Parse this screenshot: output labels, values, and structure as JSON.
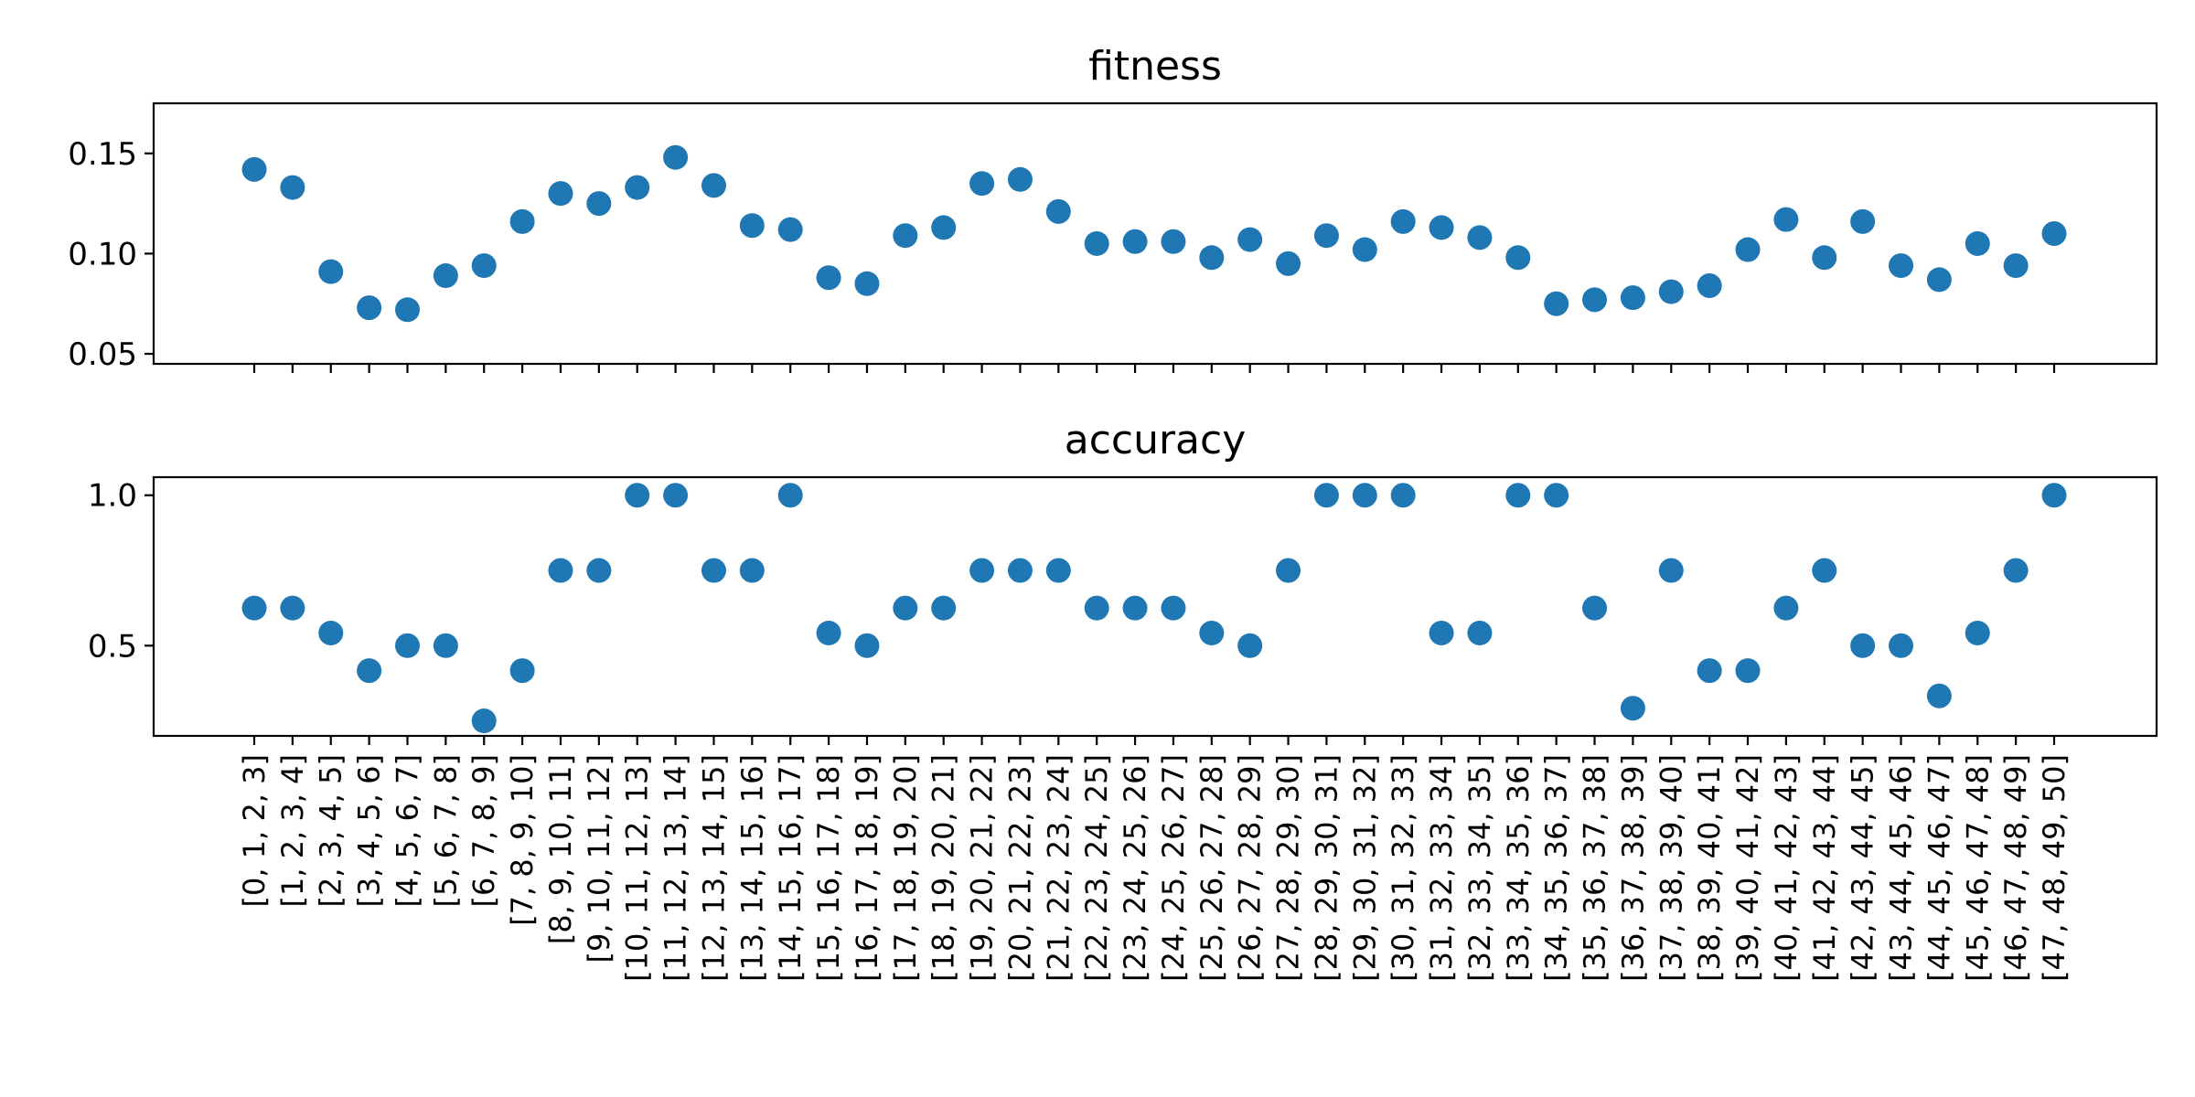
{
  "colors": {
    "marker": "#1f77b4",
    "axes": "#000000",
    "background": "#ffffff"
  },
  "chart_data": [
    {
      "type": "scatter",
      "title": "fitness",
      "xlabel": "",
      "ylabel": "",
      "ylim": [
        0.045,
        0.175
      ],
      "yticks": [
        0.05,
        0.1,
        0.15
      ],
      "ytick_labels": [
        "0.05",
        "0.10",
        "0.15"
      ],
      "grid": false,
      "x_tick_labels_visible": false,
      "values": [
        0.142,
        0.133,
        0.091,
        0.073,
        0.072,
        0.089,
        0.094,
        0.116,
        0.13,
        0.125,
        0.133,
        0.148,
        0.134,
        0.114,
        0.112,
        0.088,
        0.085,
        0.109,
        0.113,
        0.135,
        0.137,
        0.121,
        0.105,
        0.106,
        0.106,
        0.098,
        0.107,
        0.095,
        0.109,
        0.102,
        0.116,
        0.113,
        0.108,
        0.098,
        0.075,
        0.077,
        0.078,
        0.081,
        0.084,
        0.102,
        0.117,
        0.098,
        0.116,
        0.094,
        0.087,
        0.105,
        0.094,
        0.11
      ]
    },
    {
      "type": "scatter",
      "title": "accuracy",
      "xlabel": "",
      "ylabel": "",
      "ylim": [
        0.2,
        1.06
      ],
      "yticks": [
        0.5,
        1.0
      ],
      "ytick_labels": [
        "0.5",
        "1.0"
      ],
      "grid": false,
      "x_tick_labels_visible": true,
      "values": [
        0.625,
        0.625,
        0.542,
        0.417,
        0.5,
        0.5,
        0.25,
        0.417,
        0.75,
        0.75,
        1.0,
        1.0,
        0.75,
        0.75,
        1.0,
        0.542,
        0.5,
        0.625,
        0.625,
        0.75,
        0.75,
        0.75,
        0.625,
        0.625,
        0.625,
        0.542,
        0.5,
        0.75,
        1.0,
        1.0,
        1.0,
        0.542,
        0.542,
        1.0,
        1.0,
        0.625,
        0.292,
        0.75,
        0.417,
        0.417,
        0.625,
        0.75,
        0.5,
        0.5,
        0.333,
        0.542,
        0.75,
        1.0
      ]
    }
  ],
  "categories": [
    "[0, 1, 2, 3]",
    "[1, 2, 3, 4]",
    "[2, 3, 4, 5]",
    "[3, 4, 5, 6]",
    "[4, 5, 6, 7]",
    "[5, 6, 7, 8]",
    "[6, 7, 8, 9]",
    "[7, 8, 9, 10]",
    "[8, 9, 10, 11]",
    "[9, 10, 11, 12]",
    "[10, 11, 12, 13]",
    "[11, 12, 13, 14]",
    "[12, 13, 14, 15]",
    "[13, 14, 15, 16]",
    "[14, 15, 16, 17]",
    "[15, 16, 17, 18]",
    "[16, 17, 18, 19]",
    "[17, 18, 19, 20]",
    "[18, 19, 20, 21]",
    "[19, 20, 21, 22]",
    "[20, 21, 22, 23]",
    "[21, 22, 23, 24]",
    "[22, 23, 24, 25]",
    "[23, 24, 25, 26]",
    "[24, 25, 26, 27]",
    "[25, 26, 27, 28]",
    "[26, 27, 28, 29]",
    "[27, 28, 29, 30]",
    "[28, 29, 30, 31]",
    "[29, 30, 31, 32]",
    "[30, 31, 32, 33]",
    "[31, 32, 33, 34]",
    "[32, 33, 34, 35]",
    "[33, 34, 35, 36]",
    "[34, 35, 36, 37]",
    "[35, 36, 37, 38]",
    "[36, 37, 38, 39]",
    "[37, 38, 39, 40]",
    "[38, 39, 40, 41]",
    "[39, 40, 41, 42]",
    "[40, 41, 42, 43]",
    "[41, 42, 43, 44]",
    "[42, 43, 44, 45]",
    "[43, 44, 45, 46]",
    "[44, 45, 46, 47]",
    "[45, 46, 47, 48]",
    "[46, 47, 48, 49]",
    "[47, 48, 49, 50]"
  ]
}
